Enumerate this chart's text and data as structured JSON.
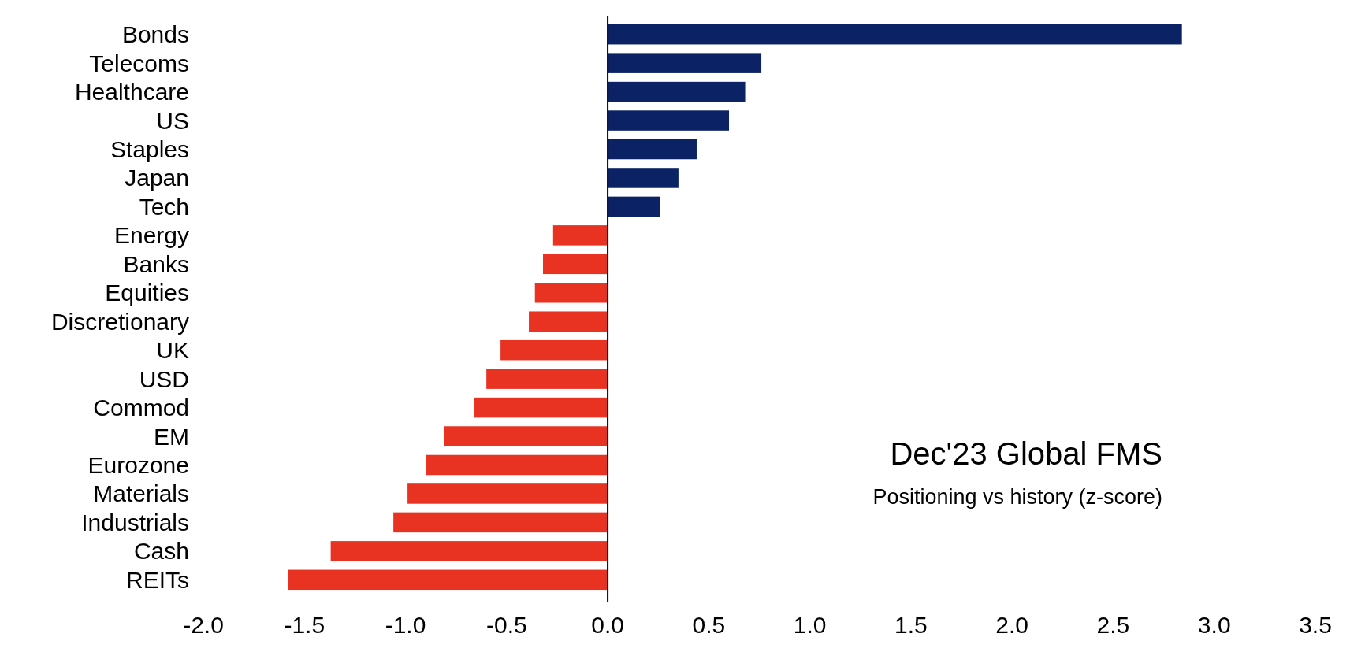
{
  "chart_data": {
    "type": "bar",
    "orientation": "horizontal",
    "title": "Dec'23 Global FMS",
    "subtitle": "Positioning vs history (z-score)",
    "categories": [
      "Bonds",
      "Telecoms",
      "Healthcare",
      "US",
      "Staples",
      "Japan",
      "Tech",
      "Energy",
      "Banks",
      "Equities",
      "Discretionary",
      "UK",
      "USD",
      "Commod",
      "EM",
      "Eurozone",
      "Materials",
      "Industrials",
      "Cash",
      "REITs"
    ],
    "values": [
      2.84,
      0.76,
      0.68,
      0.6,
      0.44,
      0.35,
      0.26,
      -0.27,
      -0.32,
      -0.36,
      -0.39,
      -0.53,
      -0.6,
      -0.66,
      -0.81,
      -0.9,
      -0.99,
      -1.06,
      -1.37,
      -1.58
    ],
    "colors": [
      "#0b2265",
      "#0b2265",
      "#0b2265",
      "#0b2265",
      "#0b2265",
      "#0b2265",
      "#0b2265",
      "#e83323",
      "#e83323",
      "#e83323",
      "#e83323",
      "#e83323",
      "#e83323",
      "#e83323",
      "#e83323",
      "#e83323",
      "#e83323",
      "#e83323",
      "#e83323",
      "#e83323"
    ],
    "xlim": [
      -2,
      3.5
    ],
    "xticks": [
      {
        "value": -2,
        "label": "-2.0"
      },
      {
        "value": -1.5,
        "label": "-1.5"
      },
      {
        "value": -1,
        "label": "-1.0"
      },
      {
        "value": -0.5,
        "label": "-0.5"
      },
      {
        "value": 0,
        "label": "0.0"
      },
      {
        "value": 0.5,
        "label": "0.5"
      },
      {
        "value": 1,
        "label": "1.0"
      },
      {
        "value": 1.5,
        "label": "1.5"
      },
      {
        "value": 2,
        "label": "2.0"
      },
      {
        "value": 2.5,
        "label": "2.5"
      },
      {
        "value": 3,
        "label": "3.0"
      },
      {
        "value": 3.5,
        "label": "3.5"
      }
    ],
    "tick_labels": true
  }
}
